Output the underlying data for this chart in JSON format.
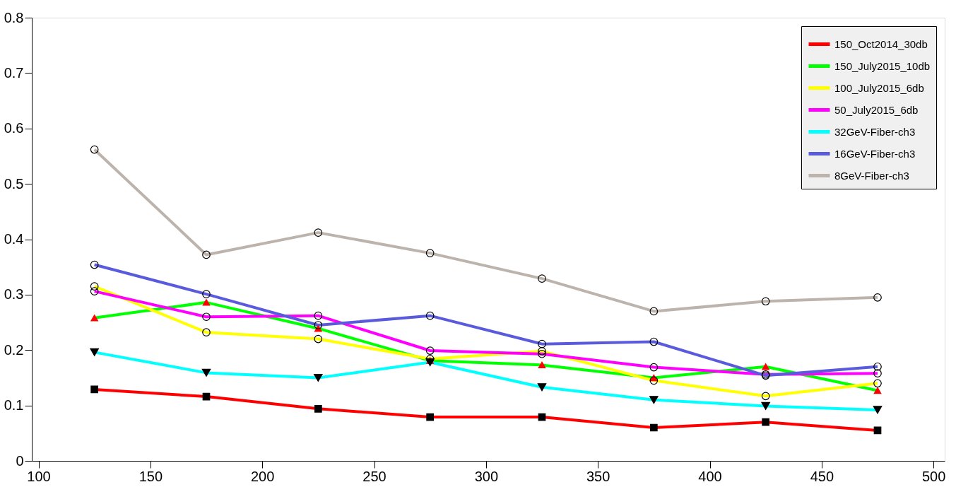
{
  "chart_data": {
    "type": "line",
    "x": [
      125,
      175,
      225,
      275,
      325,
      375,
      425,
      475
    ],
    "xlim": [
      97,
      505
    ],
    "xticks": [
      100,
      150,
      200,
      250,
      300,
      350,
      400,
      450,
      500
    ],
    "ylim": [
      0,
      0.8
    ],
    "yticks": [
      0,
      0.1,
      0.2,
      0.3,
      0.4,
      0.5,
      0.6,
      0.7,
      0.8
    ],
    "grid": false,
    "legend": "top right",
    "line_style": "solid",
    "series": [
      {
        "name": "150_Oct2014_30db",
        "color": "#ff0000",
        "marker": "square",
        "values": [
          0.129,
          0.116,
          0.094,
          0.079,
          0.079,
          0.06,
          0.07,
          0.055
        ]
      },
      {
        "name": "150_July2015_10db",
        "color": "#00ff00",
        "marker": "triangle",
        "values": [
          0.258,
          0.286,
          0.239,
          0.181,
          0.173,
          0.15,
          0.17,
          0.127
        ]
      },
      {
        "name": "100_July2015_6db",
        "color": "#ffff00",
        "marker": "circle",
        "values": [
          0.315,
          0.232,
          0.22,
          0.184,
          0.198,
          0.145,
          0.117,
          0.14
        ]
      },
      {
        "name": "50_July2015_6db",
        "color": "#ff00ff",
        "marker": "circle",
        "values": [
          0.306,
          0.26,
          0.262,
          0.199,
          0.193,
          0.169,
          0.156,
          0.158
        ]
      },
      {
        "name": "32GeV-Fiber-ch3",
        "color": "#00ffff",
        "marker": "triangle-down",
        "values": [
          0.196,
          0.159,
          0.15,
          0.178,
          0.133,
          0.11,
          0.099,
          0.092
        ]
      },
      {
        "name": "16GeV-Fiber-ch3",
        "color": "#5a5adc",
        "marker": "circle",
        "values": [
          0.354,
          0.301,
          0.245,
          0.262,
          0.211,
          0.215,
          0.154,
          0.17
        ]
      },
      {
        "name": "8GeV-Fiber-ch3",
        "color": "#bcb4ac",
        "marker": "circle",
        "values": [
          0.562,
          0.372,
          0.412,
          0.375,
          0.329,
          0.27,
          0.288,
          0.295
        ]
      }
    ]
  }
}
